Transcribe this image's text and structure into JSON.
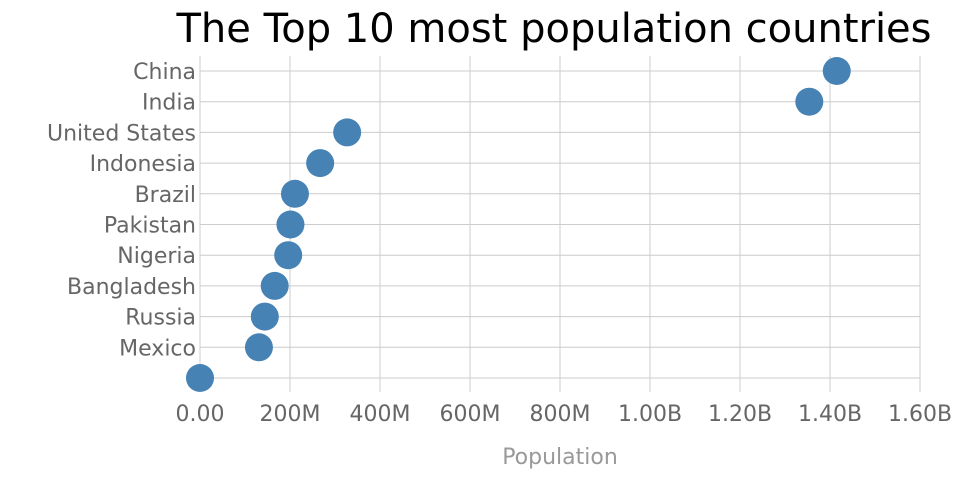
{
  "chart_data": {
    "type": "scatter",
    "title": "The Top 10 most population countries",
    "xlabel": "Population",
    "ylabel": "",
    "xlim": [
      0,
      1600000000
    ],
    "x_ticks": [
      {
        "value": 0,
        "label": "0.00"
      },
      {
        "value": 200000000,
        "label": "200M"
      },
      {
        "value": 400000000,
        "label": "400M"
      },
      {
        "value": 600000000,
        "label": "600M"
      },
      {
        "value": 800000000,
        "label": "800M"
      },
      {
        "value": 1000000000,
        "label": "1.00B"
      },
      {
        "value": 1200000000,
        "label": "1.20B"
      },
      {
        "value": 1400000000,
        "label": "1.40B"
      },
      {
        "value": 1600000000,
        "label": "1.60B"
      }
    ],
    "categories": [
      "China",
      "India",
      "United States",
      "Indonesia",
      "Brazil",
      "Pakistan",
      "Nigeria",
      "Bangladesh",
      "Russia",
      "Mexico",
      ""
    ],
    "values": [
      1415000000,
      1354000000,
      327000000,
      267000000,
      211000000,
      201000000,
      196000000,
      166000000,
      144000000,
      131000000,
      0
    ],
    "marker_color": "#4682b4",
    "grid": true,
    "legend": false
  }
}
